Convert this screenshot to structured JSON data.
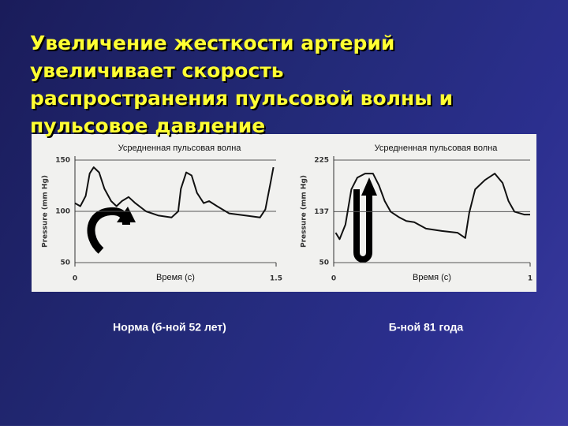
{
  "title": [
    "Увеличение жесткости артерий",
    "увеличивает скорость",
    "распространения пульсовой волны и",
    "пульсовое давление"
  ],
  "chart_data": [
    {
      "type": "line",
      "title": "Усредненная пульсовая волна",
      "x_label": "Время (с)",
      "y_label": "Pressure (mm Hg)",
      "caption": "Норма (б-ной 52 лет)",
      "xlim": [
        0,
        1.5
      ],
      "xticks": [
        0,
        1.5
      ],
      "ylim": [
        50,
        150
      ],
      "yticks": [
        50,
        100,
        150
      ],
      "grid": true,
      "color": "#111111",
      "x": [
        0,
        0.04,
        0.08,
        0.11,
        0.14,
        0.18,
        0.22,
        0.27,
        0.31,
        0.35,
        0.4,
        0.45,
        0.53,
        0.62,
        0.72,
        0.77,
        0.79,
        0.83,
        0.87,
        0.91,
        0.96,
        1.0,
        1.06,
        1.15,
        1.27,
        1.38,
        1.42,
        1.46,
        1.48
      ],
      "values": [
        108,
        105,
        115,
        137,
        143,
        138,
        122,
        110,
        105,
        110,
        114,
        108,
        100,
        96,
        94,
        100,
        122,
        138,
        135,
        118,
        108,
        110,
        105,
        98,
        96,
        94,
        102,
        129,
        143
      ]
    },
    {
      "type": "line",
      "title": "Усредненная пульсовая волна",
      "x_label": "Время (с)",
      "y_label": "Pressure (mm Hg)",
      "caption": "Б-ной 81 года",
      "xlim": [
        0,
        1
      ],
      "xticks": [
        0,
        1
      ],
      "ylim": [
        50,
        225
      ],
      "yticks": [
        50,
        137,
        225
      ],
      "grid": true,
      "color": "#111111",
      "x": [
        0.01,
        0.03,
        0.06,
        0.09,
        0.12,
        0.16,
        0.2,
        0.23,
        0.26,
        0.29,
        0.33,
        0.37,
        0.41,
        0.47,
        0.55,
        0.63,
        0.67,
        0.69,
        0.72,
        0.77,
        0.82,
        0.86,
        0.89,
        0.92,
        0.97,
        1.0
      ],
      "values": [
        101,
        90,
        115,
        175,
        195,
        202,
        202,
        182,
        155,
        137,
        128,
        121,
        119,
        108,
        104,
        101,
        92,
        135,
        175,
        191,
        202,
        186,
        155,
        137,
        132,
        132
      ]
    }
  ]
}
